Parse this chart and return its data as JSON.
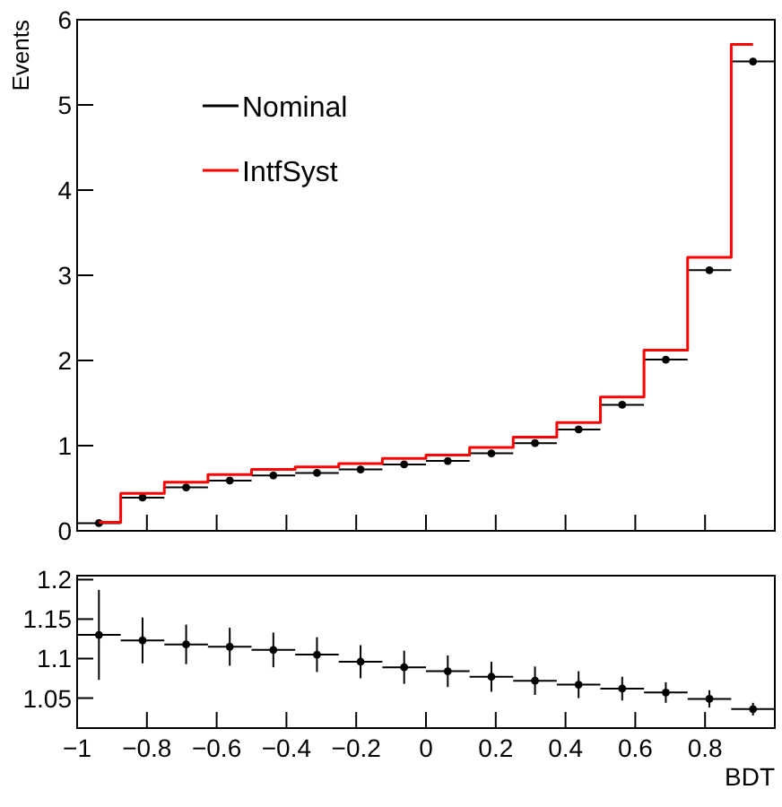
{
  "chart_data": [
    {
      "type": "step",
      "ylabel": "Events",
      "x": [
        -0.9375,
        -0.8125,
        -0.6875,
        -0.5625,
        -0.4375,
        -0.3125,
        -0.1875,
        -0.0625,
        0.0625,
        0.1875,
        0.3125,
        0.4375,
        0.5625,
        0.6875,
        0.8125,
        0.9375
      ],
      "xlim": [
        -1,
        1
      ],
      "ylim": [
        0,
        6
      ],
      "yticks": [
        0,
        1,
        2,
        3,
        4,
        5,
        6
      ],
      "xticks": [
        -1,
        -0.8,
        -0.6,
        -0.4,
        -0.2,
        0,
        0.2,
        0.4,
        0.6,
        0.8
      ],
      "tick_labels": "y",
      "legend": "top left",
      "grid": false,
      "series": [
        {
          "name": "Nominal",
          "type": "scatter",
          "marker": "circle",
          "color": "#000000",
          "values": [
            0.09,
            0.39,
            0.51,
            0.59,
            0.65,
            0.68,
            0.72,
            0.78,
            0.82,
            0.91,
            1.03,
            1.19,
            1.48,
            2.01,
            3.06,
            5.51
          ],
          "xerrors": [
            0.0625,
            0.0625,
            0.0625,
            0.0625,
            0.0625,
            0.0625,
            0.0625,
            0.0625,
            0.0625,
            0.0625,
            0.0625,
            0.0625,
            0.0625,
            0.0625,
            0.0625,
            0.0625
          ]
        },
        {
          "name": "IntfSyst",
          "color": "#ff0000",
          "values": [
            0.1,
            0.44,
            0.57,
            0.66,
            0.72,
            0.75,
            0.79,
            0.85,
            0.89,
            0.98,
            1.1,
            1.27,
            1.57,
            2.12,
            3.21,
            5.71
          ]
        }
      ]
    },
    {
      "type": "scatter",
      "marker": "circle",
      "xlabel": "BDT",
      "x": [
        -0.9375,
        -0.8125,
        -0.6875,
        -0.5625,
        -0.4375,
        -0.3125,
        -0.1875,
        -0.0625,
        0.0625,
        0.1875,
        0.3125,
        0.4375,
        0.5625,
        0.6875,
        0.8125,
        0.9375
      ],
      "xlim": [
        -1,
        1
      ],
      "ylim": [
        1.012,
        1.205
      ],
      "yticks": [
        1.05,
        1.1,
        1.15,
        1.2
      ],
      "xticks": [
        -1,
        -0.8,
        -0.6,
        -0.4,
        -0.2,
        0,
        0.2,
        0.4,
        0.6,
        0.8
      ],
      "grid": false,
      "series": [
        {
          "color": "#000000",
          "values": [
            1.13,
            1.123,
            1.118,
            1.115,
            1.111,
            1.105,
            1.096,
            1.089,
            1.084,
            1.077,
            1.072,
            1.067,
            1.062,
            1.057,
            1.049,
            1.036
          ],
          "errors": [
            0.057,
            0.029,
            0.025,
            0.024,
            0.022,
            0.022,
            0.021,
            0.021,
            0.02,
            0.019,
            0.018,
            0.017,
            0.015,
            0.013,
            0.011,
            0.008
          ],
          "xerrors": [
            0.0625,
            0.0625,
            0.0625,
            0.0625,
            0.0625,
            0.0625,
            0.0625,
            0.0625,
            0.0625,
            0.0625,
            0.0625,
            0.0625,
            0.0625,
            0.0625,
            0.0625,
            0.0625
          ]
        }
      ]
    }
  ]
}
